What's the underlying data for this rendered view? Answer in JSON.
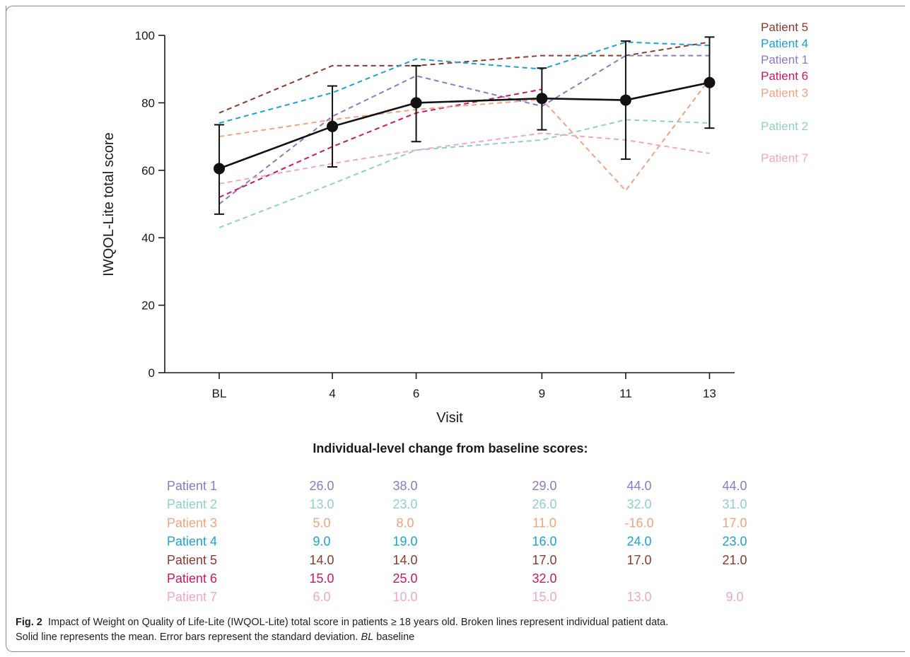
{
  "chart_data": {
    "type": "line",
    "xlabel": "Visit",
    "ylabel": "IWQOL-Lite total score",
    "ylim": [
      0,
      100
    ],
    "yticks": [
      "0",
      "20",
      "40",
      "60",
      "80",
      "100"
    ],
    "categories": [
      "BL",
      "4",
      "6",
      "9",
      "11",
      "13"
    ],
    "x_numeric": [
      1.3,
      4,
      6,
      9,
      11,
      13
    ],
    "mean": {
      "values": [
        60.5,
        73,
        80,
        81.3,
        80.8,
        86
      ],
      "sd_low": [
        47,
        61,
        68.5,
        72,
        63.3,
        72.5
      ],
      "sd_high": [
        73.5,
        85,
        91,
        90.3,
        98.3,
        99.5
      ]
    },
    "series": [
      {
        "name": "Patient 5",
        "color": "#8b3a2f",
        "values": [
          77,
          91,
          91,
          94,
          94,
          98
        ]
      },
      {
        "name": "Patient 4",
        "color": "#1aa3d6",
        "values": [
          74,
          83,
          93,
          90,
          98,
          97
        ]
      },
      {
        "name": "Patient 1",
        "color": "#8c79c9",
        "values": [
          50,
          76,
          88,
          79,
          94,
          94
        ]
      },
      {
        "name": "Patient 6",
        "color": "#d0175e",
        "values": [
          52,
          67,
          77,
          84,
          null,
          null
        ]
      },
      {
        "name": "Patient 3",
        "color": "#f4a17f",
        "values": [
          70,
          75,
          78,
          81,
          54,
          87
        ]
      },
      {
        "name": "Patient 2",
        "color": "#8fd2c4",
        "values": [
          43,
          56,
          66,
          69,
          75,
          74
        ]
      },
      {
        "name": "Patient 7",
        "color": "#efa7c4",
        "values": [
          56,
          62,
          66,
          71,
          69,
          65
        ]
      }
    ]
  },
  "table": {
    "title": "Individual-level change from baseline scores:",
    "rows": [
      {
        "name": "Patient 1",
        "color": "#8c79c9",
        "values": [
          "26.0",
          "38.0",
          "29.0",
          "44.0",
          "44.0"
        ]
      },
      {
        "name": "Patient 2",
        "color": "#8fd2c4",
        "values": [
          "13.0",
          "23.0",
          "26.0",
          "32.0",
          "31.0"
        ]
      },
      {
        "name": "Patient 3",
        "color": "#f4a17f",
        "values": [
          "5.0",
          "8.0",
          "11.0",
          "-16.0",
          "17.0"
        ]
      },
      {
        "name": "Patient 4",
        "color": "#1aa3d6",
        "values": [
          "9.0",
          "19.0",
          "16.0",
          "24.0",
          "23.0"
        ]
      },
      {
        "name": "Patient 5",
        "color": "#8b3a2f",
        "values": [
          "14.0",
          "14.0",
          "17.0",
          "17.0",
          "21.0"
        ]
      },
      {
        "name": "Patient 6",
        "color": "#d0175e",
        "values": [
          "15.0",
          "25.0",
          "32.0",
          "",
          ""
        ]
      },
      {
        "name": "Patient 7",
        "color": "#efa7c4",
        "values": [
          "6.0",
          "10.0",
          "15.0",
          "13.0",
          "9.0"
        ]
      }
    ]
  },
  "caption": {
    "label": "Fig. 2",
    "text1": "Impact of Weight on Quality of Life-Lite (IWQOL-Lite) total score in patients ≥ 18 years old. Broken lines represent individual patient data.",
    "text2": "Solid line represents the mean. Error bars represent the standard deviation.",
    "abbrev": "BL",
    "abbrev_def": "baseline"
  }
}
